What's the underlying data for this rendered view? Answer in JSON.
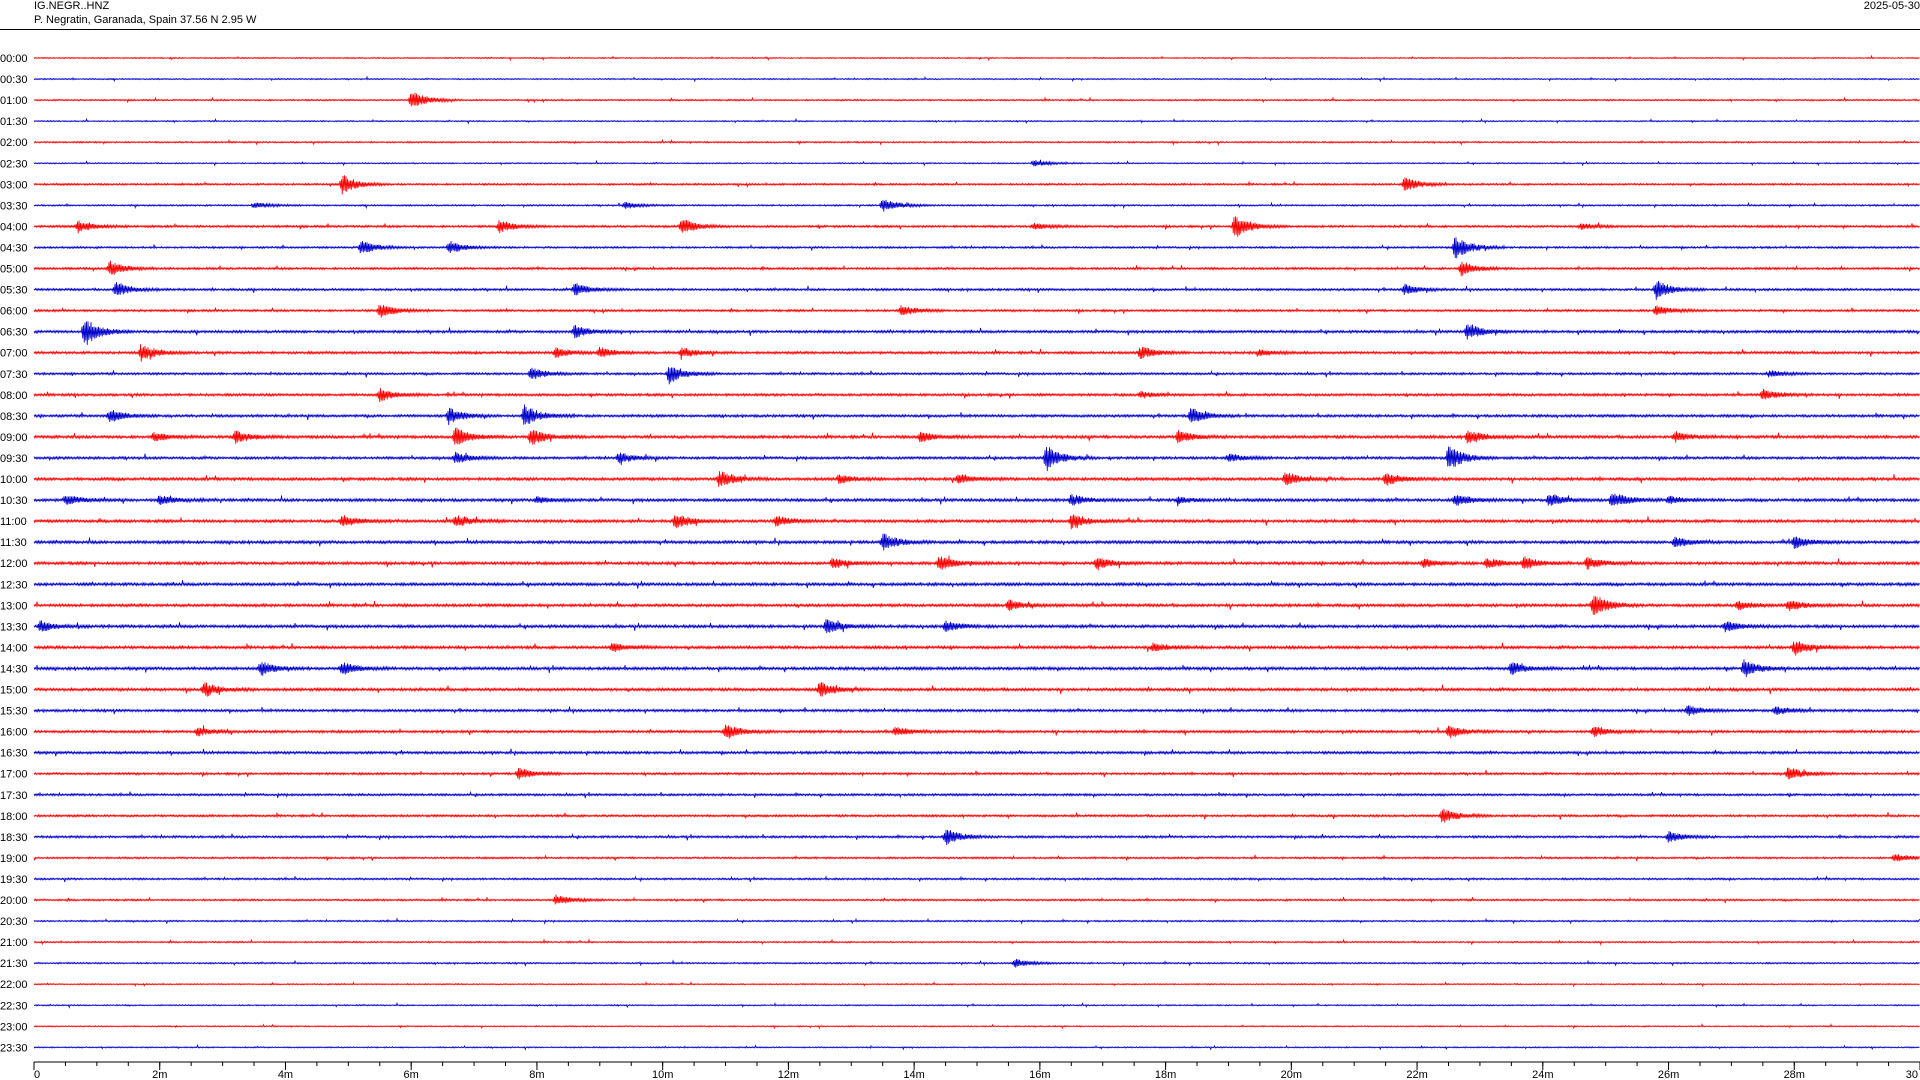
{
  "header": {
    "station": "IG.NEGR..HNZ",
    "location": "P. Negratin, Garanada, Spain  37.56 N 2.95 W",
    "date": "2025-05-30"
  },
  "chart_data": {
    "type": "line",
    "subtype": "helicorder",
    "title": "",
    "xlabel": "",
    "ylabel": "",
    "row_labels": [
      "00:00",
      "00:30",
      "01:00",
      "01:30",
      "02:00",
      "02:30",
      "03:00",
      "03:30",
      "04:00",
      "04:30",
      "05:00",
      "05:30",
      "06:00",
      "06:30",
      "07:00",
      "07:30",
      "08:00",
      "08:30",
      "09:00",
      "09:30",
      "10:00",
      "10:30",
      "11:00",
      "11:30",
      "12:00",
      "12:30",
      "13:00",
      "13:30",
      "14:00",
      "14:30",
      "15:00",
      "15:30",
      "16:00",
      "16:30",
      "17:00",
      "17:30",
      "18:00",
      "18:30",
      "19:00",
      "19:30",
      "20:00",
      "20:30",
      "21:00",
      "21:30",
      "22:00",
      "22:30",
      "23:00",
      "23:30"
    ],
    "trace_colors": [
      "#ff0000",
      "#0000cc"
    ],
    "x_range_minutes": [
      0,
      30
    ],
    "x_major_ticks": [
      0,
      2,
      4,
      6,
      8,
      10,
      12,
      14,
      16,
      18,
      20,
      22,
      24,
      26,
      28,
      30
    ],
    "x_tick_labels": [
      "0",
      "2m",
      "4m",
      "6m",
      "8m",
      "10m",
      "12m",
      "14m",
      "16m",
      "18m",
      "20m",
      "22m",
      "24m",
      "26m",
      "28m",
      "30"
    ],
    "x_minor_tick_step_minutes": 0.5,
    "noise_level": [
      0.4,
      0.4,
      0.5,
      0.4,
      0.5,
      0.4,
      0.6,
      0.5,
      0.7,
      0.6,
      0.7,
      0.7,
      0.7,
      0.8,
      0.8,
      0.7,
      0.8,
      0.8,
      0.9,
      0.8,
      0.9,
      0.9,
      0.9,
      0.9,
      0.9,
      0.9,
      0.9,
      0.9,
      0.9,
      0.9,
      0.9,
      0.8,
      0.8,
      0.8,
      0.7,
      0.7,
      0.7,
      0.7,
      0.6,
      0.6,
      0.6,
      0.5,
      0.5,
      0.5,
      0.4,
      0.4,
      0.4,
      0.4
    ],
    "events": [
      {
        "row": 2,
        "t": 6.0,
        "amp": 9
      },
      {
        "row": 5,
        "t": 15.9,
        "amp": 3
      },
      {
        "row": 6,
        "t": 4.9,
        "amp": 9
      },
      {
        "row": 6,
        "t": 21.8,
        "amp": 7
      },
      {
        "row": 7,
        "t": 3.5,
        "amp": 3
      },
      {
        "row": 7,
        "t": 9.4,
        "amp": 3
      },
      {
        "row": 7,
        "t": 13.5,
        "amp": 6
      },
      {
        "row": 8,
        "t": 0.7,
        "amp": 6
      },
      {
        "row": 8,
        "t": 7.4,
        "amp": 6
      },
      {
        "row": 8,
        "t": 10.3,
        "amp": 8
      },
      {
        "row": 8,
        "t": 15.9,
        "amp": 3
      },
      {
        "row": 8,
        "t": 19.1,
        "amp": 11
      },
      {
        "row": 8,
        "t": 24.6,
        "amp": 3
      },
      {
        "row": 9,
        "t": 5.2,
        "amp": 7
      },
      {
        "row": 9,
        "t": 6.6,
        "amp": 6
      },
      {
        "row": 9,
        "t": 22.6,
        "amp": 12
      },
      {
        "row": 10,
        "t": 1.2,
        "amp": 7
      },
      {
        "row": 10,
        "t": 22.7,
        "amp": 7
      },
      {
        "row": 11,
        "t": 1.3,
        "amp": 7
      },
      {
        "row": 11,
        "t": 8.6,
        "amp": 6
      },
      {
        "row": 11,
        "t": 21.8,
        "amp": 5
      },
      {
        "row": 11,
        "t": 25.8,
        "amp": 9
      },
      {
        "row": 12,
        "t": 5.5,
        "amp": 7
      },
      {
        "row": 12,
        "t": 13.8,
        "amp": 5
      },
      {
        "row": 12,
        "t": 25.8,
        "amp": 5
      },
      {
        "row": 13,
        "t": 0.8,
        "amp": 14
      },
      {
        "row": 13,
        "t": 8.6,
        "amp": 6
      },
      {
        "row": 13,
        "t": 22.8,
        "amp": 8
      },
      {
        "row": 14,
        "t": 1.7,
        "amp": 8
      },
      {
        "row": 14,
        "t": 8.3,
        "amp": 5
      },
      {
        "row": 14,
        "t": 9.0,
        "amp": 5
      },
      {
        "row": 14,
        "t": 10.3,
        "amp": 5
      },
      {
        "row": 14,
        "t": 17.6,
        "amp": 6
      },
      {
        "row": 14,
        "t": 19.5,
        "amp": 3
      },
      {
        "row": 15,
        "t": 7.9,
        "amp": 6
      },
      {
        "row": 15,
        "t": 10.1,
        "amp": 9
      },
      {
        "row": 15,
        "t": 27.6,
        "amp": 3
      },
      {
        "row": 16,
        "t": 5.5,
        "amp": 6
      },
      {
        "row": 16,
        "t": 17.6,
        "amp": 3
      },
      {
        "row": 16,
        "t": 27.5,
        "amp": 5
      },
      {
        "row": 17,
        "t": 1.2,
        "amp": 6
      },
      {
        "row": 17,
        "t": 6.6,
        "amp": 8
      },
      {
        "row": 17,
        "t": 7.8,
        "amp": 10
      },
      {
        "row": 17,
        "t": 18.4,
        "amp": 8
      },
      {
        "row": 18,
        "t": 1.9,
        "amp": 4
      },
      {
        "row": 18,
        "t": 3.2,
        "amp": 6
      },
      {
        "row": 18,
        "t": 6.7,
        "amp": 9
      },
      {
        "row": 18,
        "t": 7.9,
        "amp": 8
      },
      {
        "row": 18,
        "t": 14.1,
        "amp": 5
      },
      {
        "row": 18,
        "t": 18.2,
        "amp": 6
      },
      {
        "row": 18,
        "t": 22.8,
        "amp": 7
      },
      {
        "row": 18,
        "t": 26.1,
        "amp": 5
      },
      {
        "row": 19,
        "t": 6.7,
        "amp": 5
      },
      {
        "row": 19,
        "t": 9.3,
        "amp": 5
      },
      {
        "row": 19,
        "t": 16.1,
        "amp": 12
      },
      {
        "row": 19,
        "t": 19.0,
        "amp": 4
      },
      {
        "row": 19,
        "t": 22.5,
        "amp": 12
      },
      {
        "row": 20,
        "t": 10.9,
        "amp": 8
      },
      {
        "row": 20,
        "t": 12.8,
        "amp": 4
      },
      {
        "row": 20,
        "t": 14.7,
        "amp": 5
      },
      {
        "row": 20,
        "t": 19.9,
        "amp": 6
      },
      {
        "row": 20,
        "t": 21.5,
        "amp": 6
      },
      {
        "row": 21,
        "t": 0.5,
        "amp": 5
      },
      {
        "row": 21,
        "t": 2.0,
        "amp": 5
      },
      {
        "row": 21,
        "t": 8.0,
        "amp": 3
      },
      {
        "row": 21,
        "t": 16.5,
        "amp": 5
      },
      {
        "row": 21,
        "t": 18.2,
        "amp": 3
      },
      {
        "row": 21,
        "t": 22.6,
        "amp": 6
      },
      {
        "row": 21,
        "t": 24.1,
        "amp": 6
      },
      {
        "row": 21,
        "t": 25.1,
        "amp": 8
      },
      {
        "row": 21,
        "t": 26.0,
        "amp": 4
      },
      {
        "row": 22,
        "t": 4.9,
        "amp": 6
      },
      {
        "row": 22,
        "t": 6.7,
        "amp": 6
      },
      {
        "row": 22,
        "t": 10.2,
        "amp": 7
      },
      {
        "row": 22,
        "t": 11.8,
        "amp": 5
      },
      {
        "row": 22,
        "t": 16.5,
        "amp": 7
      },
      {
        "row": 23,
        "t": 13.5,
        "amp": 8
      },
      {
        "row": 23,
        "t": 26.1,
        "amp": 5
      },
      {
        "row": 23,
        "t": 28.0,
        "amp": 6
      },
      {
        "row": 24,
        "t": 12.7,
        "amp": 5
      },
      {
        "row": 24,
        "t": 14.4,
        "amp": 7
      },
      {
        "row": 24,
        "t": 16.9,
        "amp": 6
      },
      {
        "row": 24,
        "t": 22.1,
        "amp": 4
      },
      {
        "row": 24,
        "t": 23.1,
        "amp": 5
      },
      {
        "row": 24,
        "t": 23.7,
        "amp": 6
      },
      {
        "row": 24,
        "t": 24.7,
        "amp": 6
      },
      {
        "row": 26,
        "t": 15.5,
        "amp": 5
      },
      {
        "row": 26,
        "t": 24.8,
        "amp": 11
      },
      {
        "row": 26,
        "t": 27.1,
        "amp": 4
      },
      {
        "row": 26,
        "t": 27.9,
        "amp": 5
      },
      {
        "row": 27,
        "t": 0.1,
        "amp": 5
      },
      {
        "row": 27,
        "t": 12.6,
        "amp": 7
      },
      {
        "row": 27,
        "t": 14.5,
        "amp": 5
      },
      {
        "row": 27,
        "t": 26.9,
        "amp": 5
      },
      {
        "row": 28,
        "t": 9.2,
        "amp": 4
      },
      {
        "row": 28,
        "t": 17.8,
        "amp": 4
      },
      {
        "row": 28,
        "t": 28.0,
        "amp": 6
      },
      {
        "row": 29,
        "t": 3.6,
        "amp": 7
      },
      {
        "row": 29,
        "t": 4.9,
        "amp": 6
      },
      {
        "row": 29,
        "t": 23.5,
        "amp": 6
      },
      {
        "row": 29,
        "t": 27.2,
        "amp": 8
      },
      {
        "row": 30,
        "t": 2.7,
        "amp": 7
      },
      {
        "row": 30,
        "t": 12.5,
        "amp": 7
      },
      {
        "row": 31,
        "t": 26.3,
        "amp": 5
      },
      {
        "row": 31,
        "t": 27.7,
        "amp": 4
      },
      {
        "row": 32,
        "t": 2.6,
        "amp": 4
      },
      {
        "row": 32,
        "t": 11.0,
        "amp": 7
      },
      {
        "row": 32,
        "t": 13.7,
        "amp": 4
      },
      {
        "row": 32,
        "t": 22.5,
        "amp": 6
      },
      {
        "row": 32,
        "t": 24.8,
        "amp": 5
      },
      {
        "row": 34,
        "t": 7.7,
        "amp": 6
      },
      {
        "row": 34,
        "t": 27.9,
        "amp": 6
      },
      {
        "row": 36,
        "t": 22.4,
        "amp": 7
      },
      {
        "row": 37,
        "t": 14.5,
        "amp": 8
      },
      {
        "row": 37,
        "t": 26.0,
        "amp": 5
      },
      {
        "row": 38,
        "t": 29.6,
        "amp": 4
      },
      {
        "row": 40,
        "t": 8.3,
        "amp": 5
      },
      {
        "row": 43,
        "t": 15.6,
        "amp": 4
      }
    ]
  }
}
